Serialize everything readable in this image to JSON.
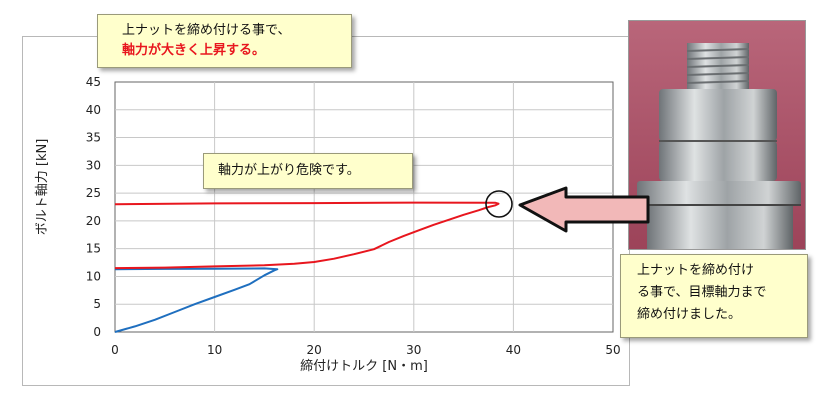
{
  "chart_data": {
    "type": "line",
    "ylabel": "ボルト軸力 [kN]",
    "xlabel": "締付けトルク [N・m]",
    "xlim": [
      0,
      50
    ],
    "ylim": [
      0,
      45
    ],
    "x_ticks": [
      0,
      10,
      20,
      30,
      40,
      50
    ],
    "y_ticks": [
      0,
      5,
      10,
      15,
      20,
      25,
      30,
      35,
      40,
      45
    ],
    "grid": true,
    "series": [
      {
        "color": "#1f6fbf",
        "points": [
          [
            0,
            0
          ],
          [
            2,
            1
          ],
          [
            4,
            2.2
          ],
          [
            6,
            3.6
          ],
          [
            8,
            5
          ],
          [
            10,
            6.3
          ],
          [
            12,
            7.6
          ],
          [
            13.5,
            8.6
          ],
          [
            15,
            10.2
          ],
          [
            16,
            11.1
          ],
          [
            16.3,
            11.3
          ],
          [
            15,
            11.45
          ],
          [
            10,
            11.4
          ],
          [
            5,
            11.35
          ],
          [
            0,
            11.3
          ]
        ]
      },
      {
        "color": "#e8161e",
        "points": [
          [
            0,
            11.5
          ],
          [
            5,
            11.6
          ],
          [
            10,
            11.8
          ],
          [
            15,
            12
          ],
          [
            18,
            12.3
          ],
          [
            20,
            12.6
          ],
          [
            22,
            13.2
          ],
          [
            24,
            14
          ],
          [
            26,
            14.9
          ],
          [
            27.5,
            16.2
          ],
          [
            29,
            17.3
          ],
          [
            30.5,
            18.3
          ],
          [
            32,
            19.3
          ],
          [
            33.5,
            20.2
          ],
          [
            35,
            21.1
          ],
          [
            36.5,
            21.9
          ],
          [
            37.5,
            22.5
          ],
          [
            38.2,
            22.8
          ],
          [
            38.5,
            23.1
          ],
          [
            38.2,
            23.25
          ],
          [
            30,
            23.3
          ],
          [
            20,
            23.2
          ],
          [
            10,
            23.15
          ],
          [
            0,
            23
          ]
        ]
      }
    ]
  },
  "annotations": {
    "top_line1": "上ナットを締め付ける事で、",
    "top_line2": "軸力が大きく上昇する。",
    "mid": "軸力が上がり危険です。",
    "right_line1": "上ナットを締め付け",
    "right_line2": "る事で、目標軸力まで",
    "right_line3": "締め付けました。"
  },
  "colors": {
    "callout_bg": "#ffffcc",
    "arrow_fill": "#f2b8b8",
    "arrow_outline": "#111111",
    "grid": "#c8c8c8",
    "photo_bg": "#b0556c"
  }
}
